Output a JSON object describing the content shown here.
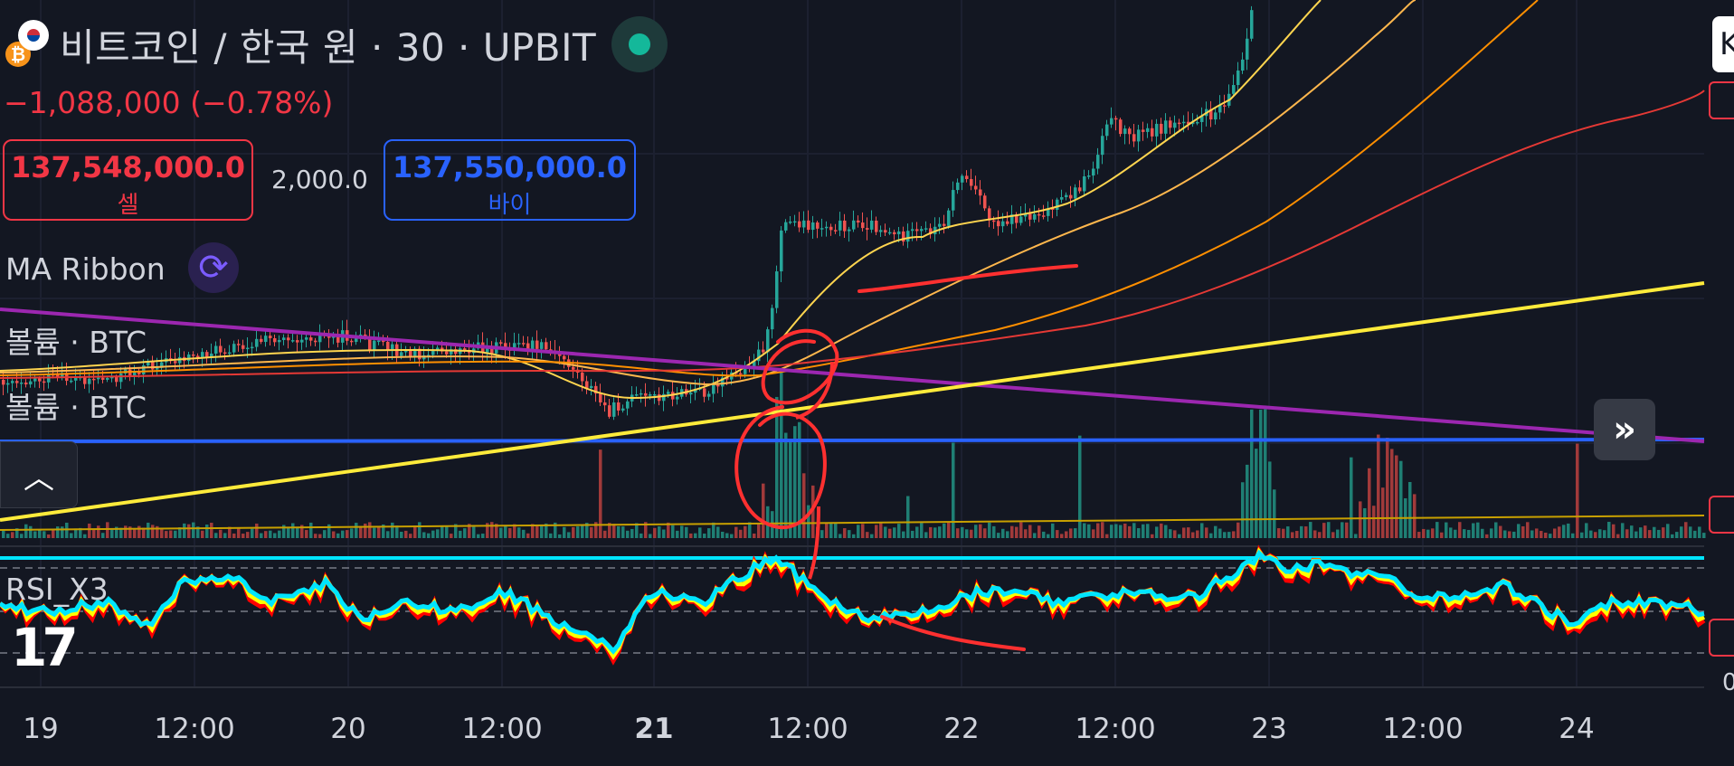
{
  "header": {
    "title": "비트코인 / 한국 원 · 30 · UPBIT",
    "change": "−1,088,000 (−0.78%)",
    "sell_price": "137,548,000.0",
    "sell_label": "셀",
    "spread": "2,000.0",
    "buy_price": "137,550,000.0",
    "buy_label": "바이"
  },
  "indicators": {
    "ma_ribbon": "MA Ribbon",
    "volume_1": "볼륨 · BTC",
    "volume_2": "볼륨 · BTC",
    "rsi": "RSI_X3"
  },
  "icons": {
    "coin": "bitcoin-icon",
    "flag": "korea-flag-icon",
    "status": "market-open-dot-icon",
    "refresh": "refresh-icon",
    "collapse": "chevron-up-icon",
    "expand": "double-chevron-right-icon",
    "logo": "tradingview-logo-icon"
  },
  "time_axis": [
    "19",
    "12:00",
    "20",
    "12:00",
    "21",
    "12:00",
    "22",
    "12:00",
    "23",
    "12:00",
    "24"
  ],
  "right_edge": {
    "box_text": "K",
    "bottom_number": "0"
  },
  "colors": {
    "background": "#131722",
    "up": "#26a69a",
    "down": "#ef5350",
    "sell": "#f23645",
    "buy": "#2962ff",
    "rsi_fast": "#ff0000",
    "rsi_mid": "#ffff00",
    "rsi_slow": "#00e5ff",
    "trendline_yellow": "#ffeb3b",
    "trendline_purple": "#9c27b0",
    "hline_blue": "#2962ff",
    "annotation": "#ff3030"
  },
  "chart_data": {
    "type": "candlestick",
    "symbol": "KRW-BTC",
    "interval": "30",
    "exchange": "UPBIT",
    "x_labels": [
      "19",
      "12:00",
      "20",
      "12:00",
      "21",
      "12:00",
      "22",
      "12:00",
      "23",
      "12:00",
      "24"
    ],
    "grid": true,
    "series": [
      {
        "name": "MA Ribbon",
        "kind": "moving-averages",
        "count": 4
      },
      {
        "name": "볼륨 · BTC",
        "kind": "volume"
      },
      {
        "name": "RSI_X3",
        "kind": "oscillator",
        "count": 3
      }
    ]
  }
}
